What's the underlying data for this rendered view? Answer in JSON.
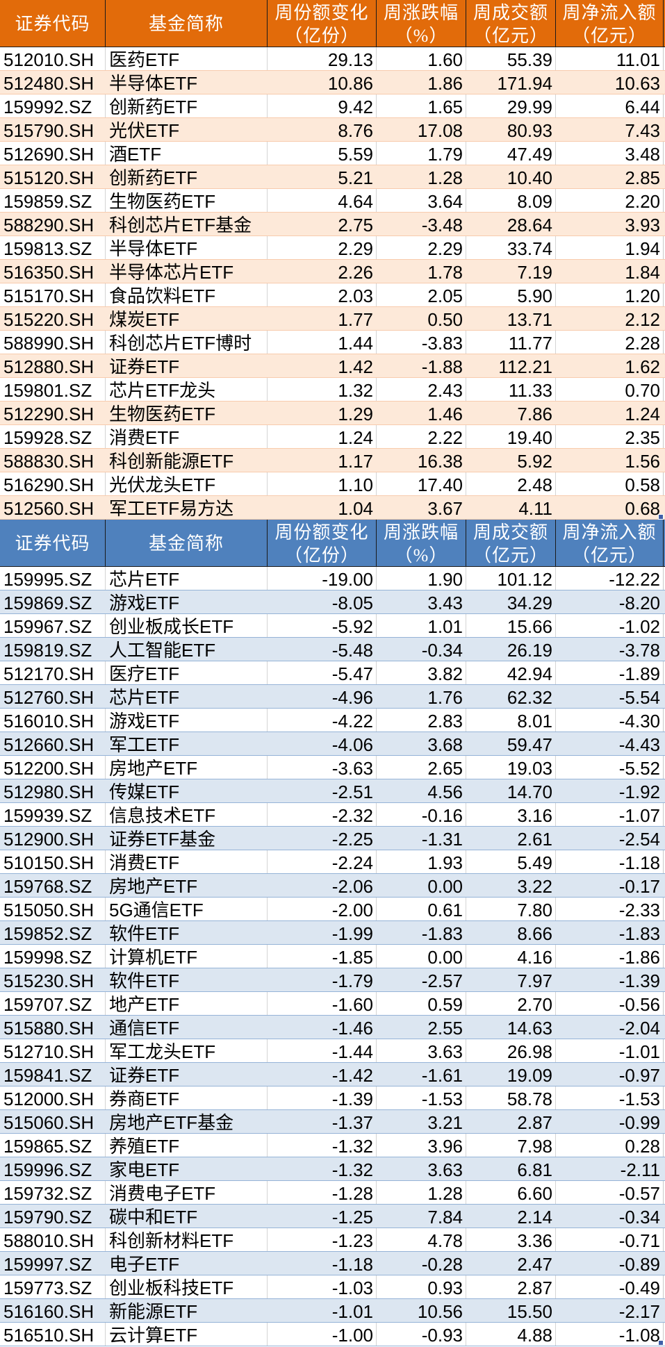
{
  "chart_data": [
    {
      "type": "table",
      "section": "share-increase",
      "header_color": "#E26B0A",
      "stripe_color": "#FDE9D9",
      "row_border_color": "#F8CBAD",
      "columns": [
        {
          "line1": "证券代码",
          "line2": ""
        },
        {
          "line1": "基金简称",
          "line2": ""
        },
        {
          "line1": "周份额变化",
          "line2": "（亿份）"
        },
        {
          "line1": "周涨跌幅",
          "line2": "（%）"
        },
        {
          "line1": "周成交额",
          "line2": "（亿元）"
        },
        {
          "line1": "周净流入额",
          "line2": "（亿元）"
        }
      ],
      "rows": [
        [
          "512010.SH",
          "医药ETF",
          29.13,
          1.6,
          55.39,
          11.01
        ],
        [
          "512480.SH",
          "半导体ETF",
          10.86,
          1.86,
          171.94,
          10.63
        ],
        [
          "159992.SZ",
          "创新药ETF",
          9.42,
          1.65,
          29.99,
          6.44
        ],
        [
          "515790.SH",
          "光伏ETF",
          8.76,
          17.08,
          80.93,
          7.43
        ],
        [
          "512690.SH",
          "酒ETF",
          5.59,
          1.79,
          47.49,
          3.48
        ],
        [
          "515120.SH",
          "创新药ETF",
          5.21,
          1.28,
          10.4,
          2.85
        ],
        [
          "159859.SZ",
          "生物医药ETF",
          4.64,
          3.64,
          8.09,
          2.2
        ],
        [
          "588290.SH",
          "科创芯片ETF基金",
          2.75,
          -3.48,
          28.64,
          3.93
        ],
        [
          "159813.SZ",
          "半导体ETF",
          2.29,
          2.29,
          33.74,
          1.94
        ],
        [
          "516350.SH",
          "半导体芯片ETF",
          2.26,
          1.78,
          7.19,
          1.84
        ],
        [
          "515170.SH",
          "食品饮料ETF",
          2.03,
          2.05,
          5.9,
          1.2
        ],
        [
          "515220.SH",
          "煤炭ETF",
          1.77,
          0.5,
          13.71,
          2.12
        ],
        [
          "588990.SH",
          "科创芯片ETF博时",
          1.44,
          -3.83,
          11.77,
          2.28
        ],
        [
          "512880.SH",
          "证券ETF",
          1.42,
          -1.88,
          112.21,
          1.62
        ],
        [
          "159801.SZ",
          "芯片ETF龙头",
          1.32,
          2.43,
          11.33,
          0.7
        ],
        [
          "512290.SH",
          "生物医药ETF",
          1.29,
          1.46,
          7.86,
          1.24
        ],
        [
          "159928.SZ",
          "消费ETF",
          1.24,
          2.22,
          19.4,
          2.35
        ],
        [
          "588830.SH",
          "科创新能源ETF",
          1.17,
          16.38,
          5.92,
          1.56
        ],
        [
          "516290.SH",
          "光伏龙头ETF",
          1.1,
          17.4,
          2.48,
          0.58
        ],
        [
          "512560.SH",
          "军工ETF易方达",
          1.04,
          3.67,
          4.11,
          0.68
        ]
      ]
    },
    {
      "type": "table",
      "section": "share-decrease",
      "header_color": "#4F81BD",
      "stripe_color": "#DCE6F1",
      "row_border_color": "#95B3D7",
      "columns": [
        {
          "line1": "证券代码",
          "line2": ""
        },
        {
          "line1": "基金简称",
          "line2": ""
        },
        {
          "line1": "周份额变化",
          "line2": "（亿份）"
        },
        {
          "line1": "周涨跌幅",
          "line2": "（%）"
        },
        {
          "line1": "周成交额",
          "line2": "（亿元）"
        },
        {
          "line1": "周净流入额",
          "line2": "（亿元）"
        }
      ],
      "rows": [
        [
          "159995.SZ",
          "芯片ETF",
          -19.0,
          1.9,
          101.12,
          -12.22
        ],
        [
          "159869.SZ",
          "游戏ETF",
          -8.05,
          3.43,
          34.29,
          -8.2
        ],
        [
          "159967.SZ",
          "创业板成长ETF",
          -5.92,
          1.01,
          15.66,
          -1.02
        ],
        [
          "159819.SZ",
          "人工智能ETF",
          -5.48,
          -0.34,
          26.19,
          -3.78
        ],
        [
          "512170.SH",
          "医疗ETF",
          -5.47,
          3.82,
          42.94,
          -1.89
        ],
        [
          "512760.SH",
          "芯片ETF",
          -4.96,
          1.76,
          62.32,
          -5.54
        ],
        [
          "516010.SH",
          "游戏ETF",
          -4.22,
          2.83,
          8.01,
          -4.3
        ],
        [
          "512660.SH",
          "军工ETF",
          -4.06,
          3.68,
          59.47,
          -4.43
        ],
        [
          "512200.SH",
          "房地产ETF",
          -3.63,
          2.65,
          19.03,
          -5.52
        ],
        [
          "512980.SH",
          "传媒ETF",
          -2.51,
          4.56,
          14.7,
          -1.92
        ],
        [
          "159939.SZ",
          "信息技术ETF",
          -2.32,
          -0.16,
          3.16,
          -1.07
        ],
        [
          "512900.SH",
          "证券ETF基金",
          -2.25,
          -1.31,
          2.61,
          -2.54
        ],
        [
          "510150.SH",
          "消费ETF",
          -2.24,
          1.93,
          5.49,
          -1.18
        ],
        [
          "159768.SZ",
          "房地产ETF",
          -2.06,
          0.0,
          3.22,
          -0.17
        ],
        [
          "515050.SH",
          "5G通信ETF",
          -2.0,
          0.61,
          7.8,
          -2.33
        ],
        [
          "159852.SZ",
          "软件ETF",
          -1.99,
          -1.83,
          8.66,
          -1.83
        ],
        [
          "159998.SZ",
          "计算机ETF",
          -1.85,
          0.0,
          4.16,
          -1.86
        ],
        [
          "515230.SH",
          "软件ETF",
          -1.79,
          -2.57,
          7.97,
          -1.39
        ],
        [
          "159707.SZ",
          "地产ETF",
          -1.6,
          0.59,
          2.7,
          -0.56
        ],
        [
          "515880.SH",
          "通信ETF",
          -1.46,
          2.55,
          14.63,
          -2.04
        ],
        [
          "512710.SH",
          "军工龙头ETF",
          -1.44,
          3.63,
          26.98,
          -1.01
        ],
        [
          "159841.SZ",
          "证券ETF",
          -1.42,
          -1.61,
          19.09,
          -0.97
        ],
        [
          "512000.SH",
          "券商ETF",
          -1.39,
          -1.53,
          58.78,
          -1.53
        ],
        [
          "515060.SH",
          "房地产ETF基金",
          -1.37,
          3.21,
          2.87,
          -0.99
        ],
        [
          "159865.SZ",
          "养殖ETF",
          -1.32,
          3.96,
          7.98,
          0.28
        ],
        [
          "159996.SZ",
          "家电ETF",
          -1.32,
          3.63,
          6.81,
          -2.11
        ],
        [
          "159732.SZ",
          "消费电子ETF",
          -1.28,
          1.28,
          6.6,
          -0.57
        ],
        [
          "159790.SZ",
          "碳中和ETF",
          -1.25,
          7.84,
          2.14,
          -0.34
        ],
        [
          "588010.SH",
          "科创新材料ETF",
          -1.23,
          4.78,
          3.36,
          -0.71
        ],
        [
          "159997.SZ",
          "电子ETF",
          -1.18,
          -0.28,
          2.47,
          -0.89
        ],
        [
          "159773.SZ",
          "创业板科技ETF",
          -1.03,
          0.93,
          2.87,
          -0.49
        ],
        [
          "516160.SH",
          "新能源ETF",
          -1.01,
          10.56,
          15.5,
          -2.17
        ],
        [
          "516510.SH",
          "云计算ETF",
          -1.0,
          -0.93,
          4.88,
          -1.08
        ]
      ]
    }
  ]
}
